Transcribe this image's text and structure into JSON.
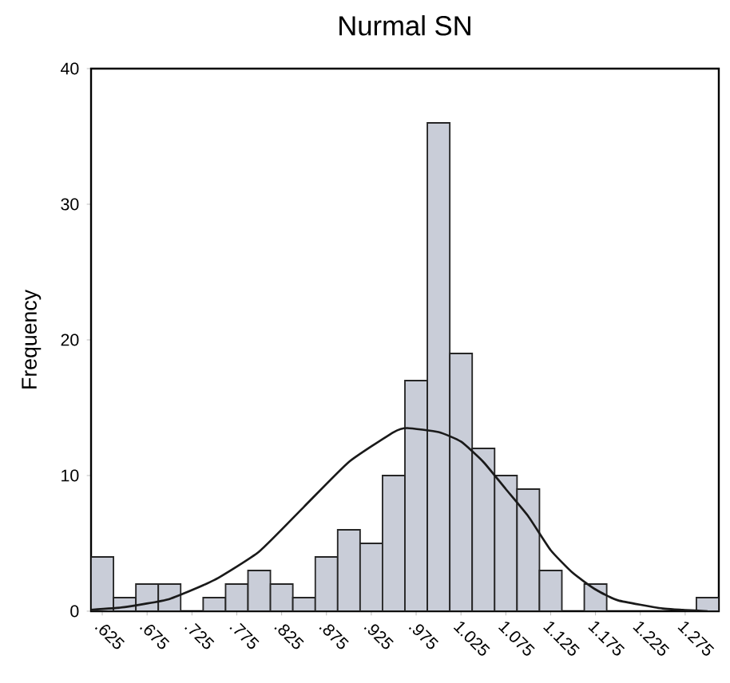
{
  "chart_data": {
    "type": "histogram",
    "title": "Nurmal SN",
    "ylabel": "Frequency",
    "color": "#c9cdd8",
    "bins": [
      0.6125,
      0.6375,
      0.6625,
      0.6875,
      0.7125,
      0.7375,
      0.7625,
      0.7875,
      0.8125,
      0.8375,
      0.8625,
      0.8875,
      0.9125,
      0.9375,
      0.9625,
      0.9875,
      1.0125,
      1.0375,
      1.0625,
      1.0875,
      1.1125,
      1.1375,
      1.1625,
      1.1875,
      1.2125,
      1.2375,
      1.2625,
      1.2875,
      1.3125
    ],
    "values": [
      4,
      1,
      2,
      2,
      0,
      1,
      2,
      3,
      2,
      1,
      4,
      6,
      5,
      10,
      17,
      36,
      19,
      12,
      10,
      9,
      3,
      0,
      2,
      0,
      0,
      0,
      0,
      1
    ],
    "series": [
      {
        "type": "line",
        "color": "#1a1a1a",
        "x": [
          0.6125,
          0.65,
          0.7,
          0.75,
          0.8,
          0.85,
          0.9,
          0.95,
          0.965,
          1.0,
          1.025,
          1.05,
          1.075,
          1.1,
          1.125,
          1.15,
          1.175,
          1.2,
          1.25,
          1.3
        ],
        "values": [
          0.1,
          0.3,
          0.9,
          2.3,
          4.4,
          7.7,
          11,
          13.2,
          13.5,
          13.2,
          12.5,
          11,
          9,
          7,
          4.5,
          2.8,
          1.6,
          0.8,
          0.2,
          0
        ]
      }
    ],
    "xlim": [
      0.6125,
      1.3125
    ],
    "ylim": [
      0,
      40
    ],
    "yticks": [
      0,
      10,
      20,
      30,
      40
    ],
    "xticks": [
      {
        "value": 0.625,
        "label": ".625"
      },
      {
        "value": 0.675,
        "label": ".675"
      },
      {
        "value": 0.725,
        "label": ".725"
      },
      {
        "value": 0.775,
        "label": ".775"
      },
      {
        "value": 0.825,
        "label": ".825"
      },
      {
        "value": 0.875,
        "label": ".875"
      },
      {
        "value": 0.925,
        "label": ".925"
      },
      {
        "value": 0.975,
        "label": ".975"
      },
      {
        "value": 1.025,
        "label": "1.025"
      },
      {
        "value": 1.075,
        "label": "1.075"
      },
      {
        "value": 1.125,
        "label": "1.125"
      },
      {
        "value": 1.175,
        "label": "1.175"
      },
      {
        "value": 1.225,
        "label": "1.225"
      },
      {
        "value": 1.275,
        "label": "1.275"
      }
    ]
  }
}
